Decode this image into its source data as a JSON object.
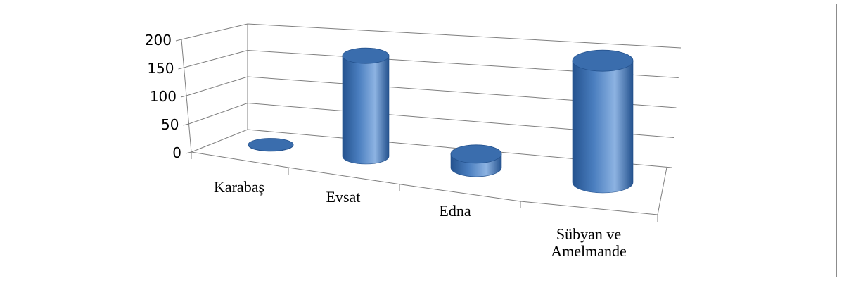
{
  "chart_data": {
    "type": "bar",
    "subtype": "3d-cylinder",
    "categories": [
      "Karabaş",
      "Evsat",
      "Edna",
      "Sübyan ve Amelmande"
    ],
    "values": [
      0,
      170,
      12,
      180
    ],
    "ylim": [
      0,
      200
    ],
    "yticks": [
      "0",
      "50",
      "100",
      "150",
      "200"
    ],
    "grid": true,
    "legend": "none",
    "colors": {
      "bar": "#4a7ebf",
      "bar_dark": "#24528e",
      "bar_light": "#8db3e2",
      "top": "#3a6dad",
      "grid": "#7f7f7f"
    }
  }
}
